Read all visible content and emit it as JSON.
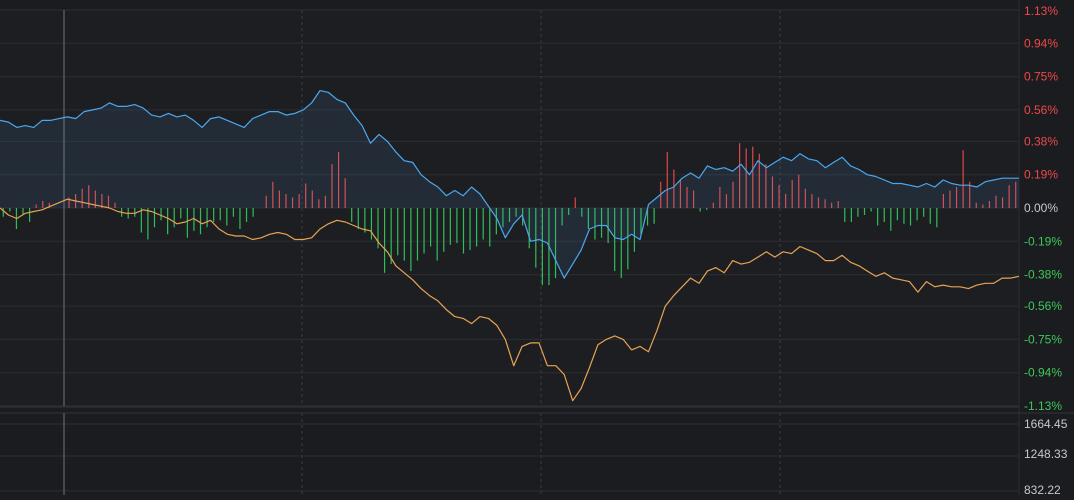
{
  "chart_data": {
    "type": "line",
    "grid": true,
    "price_axis": {
      "ticks": [
        "1.13%",
        "0.94%",
        "0.75%",
        "0.56%",
        "0.38%",
        "0.19%",
        "0.00%",
        "-0.19%",
        "-0.38%",
        "-0.56%",
        "-0.75%",
        "-0.94%",
        "-1.13%"
      ],
      "values": [
        1.13,
        0.94,
        0.75,
        0.56,
        0.38,
        0.19,
        0.0,
        -0.19,
        -0.38,
        -0.56,
        -0.75,
        -0.94,
        -1.13
      ],
      "ylim": [
        -1.13,
        1.13
      ],
      "colors": {
        "positive": "#f04848",
        "zero": "#c8c8c8",
        "negative": "#3ec858"
      }
    },
    "volume_axis": {
      "ticks": [
        "1664.45",
        "1248.33",
        "832.22"
      ],
      "values": [
        1664.45,
        1248.33,
        832.22
      ],
      "color": "#c8c8c8"
    },
    "series": [
      {
        "color": "#4aa8f0",
        "values": [
          0.5,
          0.49,
          0.46,
          0.47,
          0.46,
          0.5,
          0.5,
          0.51,
          0.52,
          0.51,
          0.55,
          0.56,
          0.57,
          0.6,
          0.58,
          0.58,
          0.59,
          0.57,
          0.53,
          0.52,
          0.54,
          0.52,
          0.53,
          0.5,
          0.46,
          0.51,
          0.52,
          0.5,
          0.48,
          0.46,
          0.51,
          0.53,
          0.55,
          0.55,
          0.53,
          0.54,
          0.56,
          0.6,
          0.67,
          0.66,
          0.62,
          0.6,
          0.53,
          0.47,
          0.37,
          0.42,
          0.38,
          0.32,
          0.27,
          0.26,
          0.19,
          0.15,
          0.12,
          0.07,
          0.1,
          0.07,
          0.12,
          0.08,
          0.01,
          -0.06,
          -0.17,
          -0.09,
          -0.04,
          -0.19,
          -0.18,
          -0.2,
          -0.3,
          -0.4,
          -0.32,
          -0.24,
          -0.12,
          -0.1,
          -0.1,
          -0.17,
          -0.18,
          -0.15,
          -0.18,
          0.02,
          0.06,
          0.1,
          0.12,
          0.17,
          0.2,
          0.17,
          0.24,
          0.22,
          0.23,
          0.21,
          0.25,
          0.19,
          0.27,
          0.23,
          0.26,
          0.29,
          0.27,
          0.31,
          0.28,
          0.27,
          0.23,
          0.26,
          0.29,
          0.24,
          0.22,
          0.19,
          0.18,
          0.16,
          0.14,
          0.14,
          0.13,
          0.12,
          0.14,
          0.12,
          0.16,
          0.14,
          0.13,
          0.13,
          0.12,
          0.15,
          0.16,
          0.17,
          0.17,
          0.17
        ]
      },
      {
        "color": "#e8a352",
        "values": [
          0.0,
          -0.04,
          -0.06,
          -0.03,
          -0.02,
          -0.01,
          0.01,
          0.03,
          0.05,
          0.04,
          0.03,
          0.02,
          0.01,
          0.0,
          -0.02,
          -0.03,
          -0.03,
          -0.01,
          -0.02,
          -0.04,
          -0.06,
          -0.09,
          -0.08,
          -0.06,
          -0.09,
          -0.07,
          -0.12,
          -0.15,
          -0.16,
          -0.16,
          -0.18,
          -0.17,
          -0.15,
          -0.14,
          -0.15,
          -0.18,
          -0.18,
          -0.17,
          -0.12,
          -0.09,
          -0.07,
          -0.08,
          -0.1,
          -0.12,
          -0.13,
          -0.2,
          -0.25,
          -0.33,
          -0.37,
          -0.41,
          -0.46,
          -0.5,
          -0.53,
          -0.58,
          -0.62,
          -0.63,
          -0.66,
          -0.62,
          -0.63,
          -0.67,
          -0.75,
          -0.9,
          -0.79,
          -0.77,
          -0.77,
          -0.9,
          -0.9,
          -0.95,
          -1.1,
          -1.03,
          -0.91,
          -0.78,
          -0.75,
          -0.73,
          -0.75,
          -0.81,
          -0.79,
          -0.82,
          -0.7,
          -0.56,
          -0.5,
          -0.45,
          -0.4,
          -0.43,
          -0.36,
          -0.34,
          -0.37,
          -0.3,
          -0.32,
          -0.31,
          -0.28,
          -0.25,
          -0.28,
          -0.25,
          -0.26,
          -0.22,
          -0.24,
          -0.26,
          -0.3,
          -0.3,
          -0.27,
          -0.31,
          -0.33,
          -0.36,
          -0.39,
          -0.37,
          -0.4,
          -0.41,
          -0.42,
          -0.48,
          -0.42,
          -0.45,
          -0.44,
          -0.45,
          -0.45,
          -0.46,
          -0.44,
          -0.43,
          -0.43,
          -0.4,
          -0.4,
          -0.39
        ]
      }
    ],
    "bars": [
      -0.05,
      -0.02,
      -0.12,
      -0.04,
      -0.08,
      0.02,
      0.04,
      0.03,
      0.0,
      0.0,
      0.06,
      0.08,
      0.11,
      0.13,
      0.1,
      0.08,
      0.07,
      0.03,
      -0.05,
      -0.06,
      -0.05,
      -0.14,
      -0.18,
      -0.11,
      -0.07,
      -0.15,
      -0.11,
      -0.06,
      -0.17,
      -0.13,
      -0.15,
      -0.11,
      -0.08,
      -0.07,
      -0.1,
      -0.05,
      -0.12,
      -0.08,
      -0.05,
      0.0,
      0.07,
      0.15,
      0.1,
      0.08,
      0.06,
      0.08,
      0.14,
      0.1,
      0.05,
      0.07,
      0.25,
      0.32,
      0.17,
      -0.08,
      -0.12,
      -0.14,
      -0.18,
      -0.23,
      -0.37,
      -0.32,
      -0.27,
      -0.3,
      -0.36,
      -0.3,
      -0.26,
      -0.22,
      -0.3,
      -0.25,
      -0.21,
      -0.2,
      -0.26,
      -0.24,
      -0.22,
      -0.18,
      -0.22,
      -0.15,
      -0.11,
      -0.08,
      -0.05,
      -0.1,
      -0.23,
      -0.34,
      -0.44,
      -0.44,
      -0.4,
      -0.1,
      -0.04,
      0.06,
      -0.05,
      -0.12,
      -0.18,
      -0.17,
      -0.2,
      -0.36,
      -0.4,
      -0.35,
      -0.25,
      -0.15,
      -0.1,
      -0.09,
      0.15,
      0.32,
      0.22,
      0.16,
      0.12,
      0.1,
      -0.02,
      -0.01,
      0.03,
      0.12,
      0.08,
      0.15,
      0.37,
      0.34,
      0.35,
      0.31,
      0.25,
      0.18,
      0.13,
      0.08,
      0.16,
      0.19,
      0.11,
      0.08,
      0.06,
      0.05,
      0.03,
      0.04,
      -0.08,
      -0.08,
      -0.05,
      -0.04,
      -0.02,
      -0.1,
      -0.08,
      -0.13,
      -0.07,
      -0.09,
      -0.1,
      -0.07,
      -0.05,
      -0.09,
      -0.11,
      0.08,
      0.1,
      0.12,
      0.33,
      0.15,
      0.03,
      0.02,
      0.04,
      0.07,
      0.06,
      0.13,
      0.15
    ]
  }
}
